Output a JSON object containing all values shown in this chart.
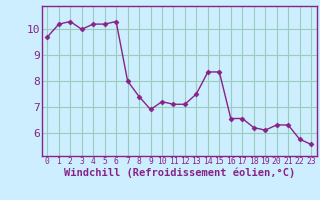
{
  "x": [
    0,
    1,
    2,
    3,
    4,
    5,
    6,
    7,
    8,
    9,
    10,
    11,
    12,
    13,
    14,
    15,
    16,
    17,
    18,
    19,
    20,
    21,
    22,
    23
  ],
  "y": [
    9.7,
    10.2,
    10.3,
    10.0,
    10.2,
    10.2,
    10.3,
    8.0,
    7.4,
    6.9,
    7.2,
    7.1,
    7.1,
    7.5,
    8.35,
    8.35,
    6.55,
    6.55,
    6.2,
    6.1,
    6.3,
    6.3,
    5.75,
    5.55
  ],
  "line_color": "#882288",
  "marker": "D",
  "marker_size": 2.5,
  "bg_color": "#cceeff",
  "grid_color": "#99ccbb",
  "xlabel": "Windchill (Refroidissement éolien,°C)",
  "xlabel_fontsize": 7.5,
  "ylabel_ticks": [
    6,
    7,
    8,
    9,
    10
  ],
  "xlim": [
    -0.5,
    23.5
  ],
  "ylim": [
    5.1,
    10.9
  ],
  "ytick_fontsize": 8,
  "xtick_fontsize": 5.8,
  "spine_color": "#882288",
  "axis_bg": "#cceeff"
}
